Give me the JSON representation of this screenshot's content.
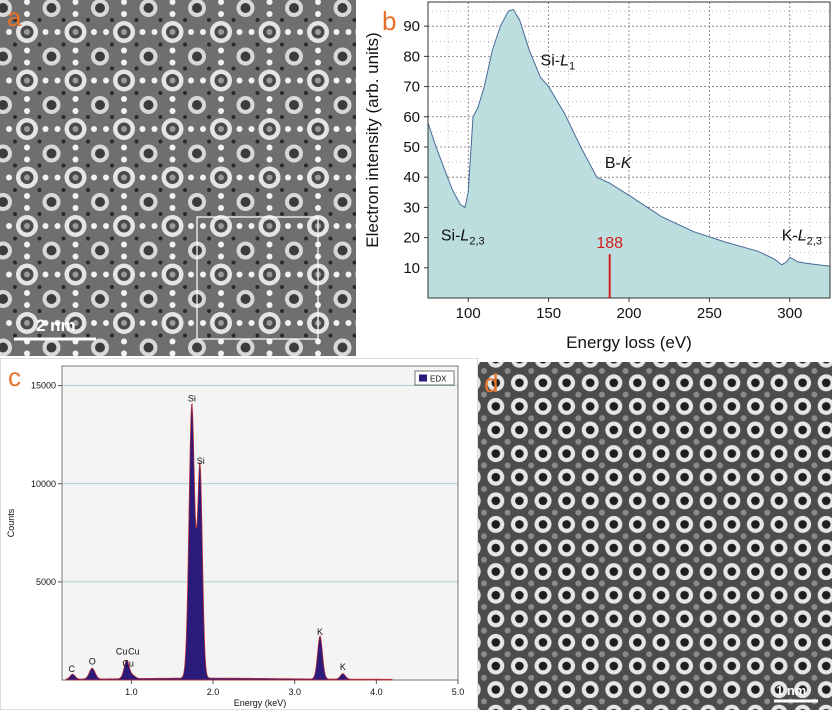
{
  "panel_a": {
    "letter": "a",
    "scalebar": "2 nm"
  },
  "panel_b": {
    "letter": "b",
    "marker_value": "188",
    "chart_data": {
      "type": "area",
      "xlabel": "Energy loss (eV)",
      "ylabel": "Electron intensity (arb. units)",
      "xlim": [
        75,
        325
      ],
      "ylim": [
        0,
        98
      ],
      "xticks": [
        100,
        150,
        200,
        250,
        300
      ],
      "yticks": [
        10,
        20,
        30,
        40,
        50,
        60,
        70,
        80,
        90
      ],
      "grid": true,
      "x": [
        75,
        80,
        85,
        90,
        95,
        98,
        100,
        103,
        106,
        110,
        115,
        120,
        125,
        128,
        132,
        138,
        145,
        150,
        160,
        170,
        180,
        188,
        200,
        220,
        240,
        260,
        280,
        290,
        295,
        298,
        300,
        305,
        310,
        325
      ],
      "y": [
        58,
        50,
        43,
        36,
        31,
        30,
        35,
        60,
        63,
        70,
        82,
        90,
        95,
        95.5,
        92,
        82,
        73,
        70,
        61,
        50,
        40,
        38,
        34,
        27,
        22,
        18.5,
        15.5,
        13,
        11,
        12,
        13.5,
        12,
        11.5,
        10.5
      ],
      "annotations": [
        {
          "text": "Si-",
          "italic": "L",
          "sub": "1",
          "x": 145,
          "y": 77
        },
        {
          "text": "B-",
          "italic": "K",
          "sub": "",
          "x": 185,
          "y": 43
        },
        {
          "text": "Si-",
          "italic": "L",
          "sub": "2,3",
          "x": 83,
          "y": 19
        },
        {
          "text": "K-",
          "italic": "L",
          "sub": "2,3",
          "x": 295,
          "y": 19
        }
      ],
      "marker": {
        "x": 188,
        "color": "#d21c1c"
      },
      "fill_color": "#bcdede",
      "line_color": "#4a6a9a"
    }
  },
  "panel_c": {
    "letter": "c",
    "chart_data": {
      "type": "bar",
      "xlabel": "Energy (keV)",
      "ylabel": "Counts",
      "xlim": [
        0.15,
        5.0
      ],
      "ylim": [
        0,
        16000
      ],
      "xticks": [
        "1.0",
        "2.0",
        "3.0",
        "4.0",
        "5.0"
      ],
      "yticks": [
        "5000",
        "10000",
        "15000"
      ],
      "legend": "EDX",
      "legend_position": "top-right",
      "series": [
        {
          "name": "EDX",
          "color": "#2a1a7a",
          "edge": "#c83030"
        }
      ],
      "peaks": [
        {
          "label": "C",
          "energy": 0.28,
          "height": 250,
          "width": 0.03
        },
        {
          "label": "O",
          "energy": 0.52,
          "height": 550,
          "width": 0.035
        },
        {
          "label": "Cu",
          "energy": 0.93,
          "height": 380,
          "width": 0.03
        },
        {
          "label": "Cu",
          "energy": 0.95,
          "height": 600,
          "width": 0.03
        },
        {
          "label": "Cu",
          "energy": 1.02,
          "height": 150,
          "width": 0.03
        },
        {
          "label": "Si",
          "energy": 1.74,
          "height": 14000,
          "width": 0.035
        },
        {
          "label": "Si",
          "energy": 1.84,
          "height": 10800,
          "width": 0.03
        },
        {
          "label": "K",
          "energy": 3.31,
          "height": 2200,
          "width": 0.03
        },
        {
          "label": "K",
          "energy": 3.59,
          "height": 280,
          "width": 0.03
        }
      ],
      "peak_labels": [
        {
          "text": "C",
          "x": 0.27,
          "y": 400
        },
        {
          "text": "O",
          "x": 0.52,
          "y": 800
        },
        {
          "text": "Cu",
          "x": 0.88,
          "y": 1300
        },
        {
          "text": "Cu",
          "x": 1.03,
          "y": 1300
        },
        {
          "text": "Cu",
          "x": 0.96,
          "y": 700
        },
        {
          "text": "Si",
          "x": 1.74,
          "y": 14200
        },
        {
          "text": "Si",
          "x": 1.85,
          "y": 11000
        },
        {
          "text": "K",
          "x": 3.31,
          "y": 2300
        },
        {
          "text": "K",
          "x": 3.59,
          "y": 500
        }
      ]
    }
  },
  "panel_d": {
    "letter": "d",
    "scalebar": "1 nm"
  }
}
